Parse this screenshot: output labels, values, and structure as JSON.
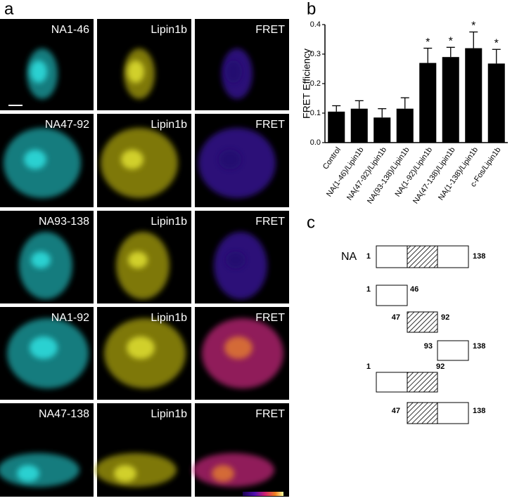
{
  "panel_labels": [
    "a",
    "b",
    "c"
  ],
  "images": {
    "rows": [
      [
        "NA1-46",
        "Lipin1b",
        "FRET"
      ],
      [
        "NA47-92",
        "Lipin1b",
        "FRET"
      ],
      [
        "NA93-138",
        "Lipin1b",
        "FRET"
      ],
      [
        "NA1-92",
        "Lipin1b",
        "FRET"
      ],
      [
        "NA47-138",
        "Lipin1b",
        "FRET"
      ]
    ]
  },
  "chart_data": {
    "type": "bar",
    "y_label": "FRET Efficiency",
    "categories": [
      "Control",
      "NA(1-46)/Lipin1b",
      "NA(47-92)/Lipin1b",
      "NA(93-138)/Lipin1b",
      "NA(1-92)/Lipin1b",
      "NA(47-138)/Lipin1b",
      "NA(1-138)/Lipin1b",
      "c-Fos/Lipin1b"
    ],
    "values": [
      0.105,
      0.115,
      0.085,
      0.115,
      0.27,
      0.29,
      0.32,
      0.268
    ],
    "errors": [
      0.02,
      0.027,
      0.03,
      0.037,
      0.05,
      0.033,
      0.055,
      0.048
    ],
    "significance": [
      null,
      null,
      null,
      null,
      "*",
      "*",
      "*",
      "*"
    ],
    "color": "#000000",
    "ylim": [
      0,
      0.4
    ],
    "yticks": [
      {
        "value": 0,
        "label": "0.0"
      },
      0.1,
      0.2,
      0.3,
      0.4
    ]
  },
  "diagram": {
    "label": "NA",
    "constructs": [
      {
        "start": 1,
        "end": 138
      },
      {
        "start": 1,
        "end": 46
      },
      {
        "start": 47,
        "end": 92
      },
      {
        "start": 93,
        "end": 138
      },
      {
        "start": 1,
        "end": 92
      },
      {
        "start": 47,
        "end": 138
      }
    ]
  }
}
